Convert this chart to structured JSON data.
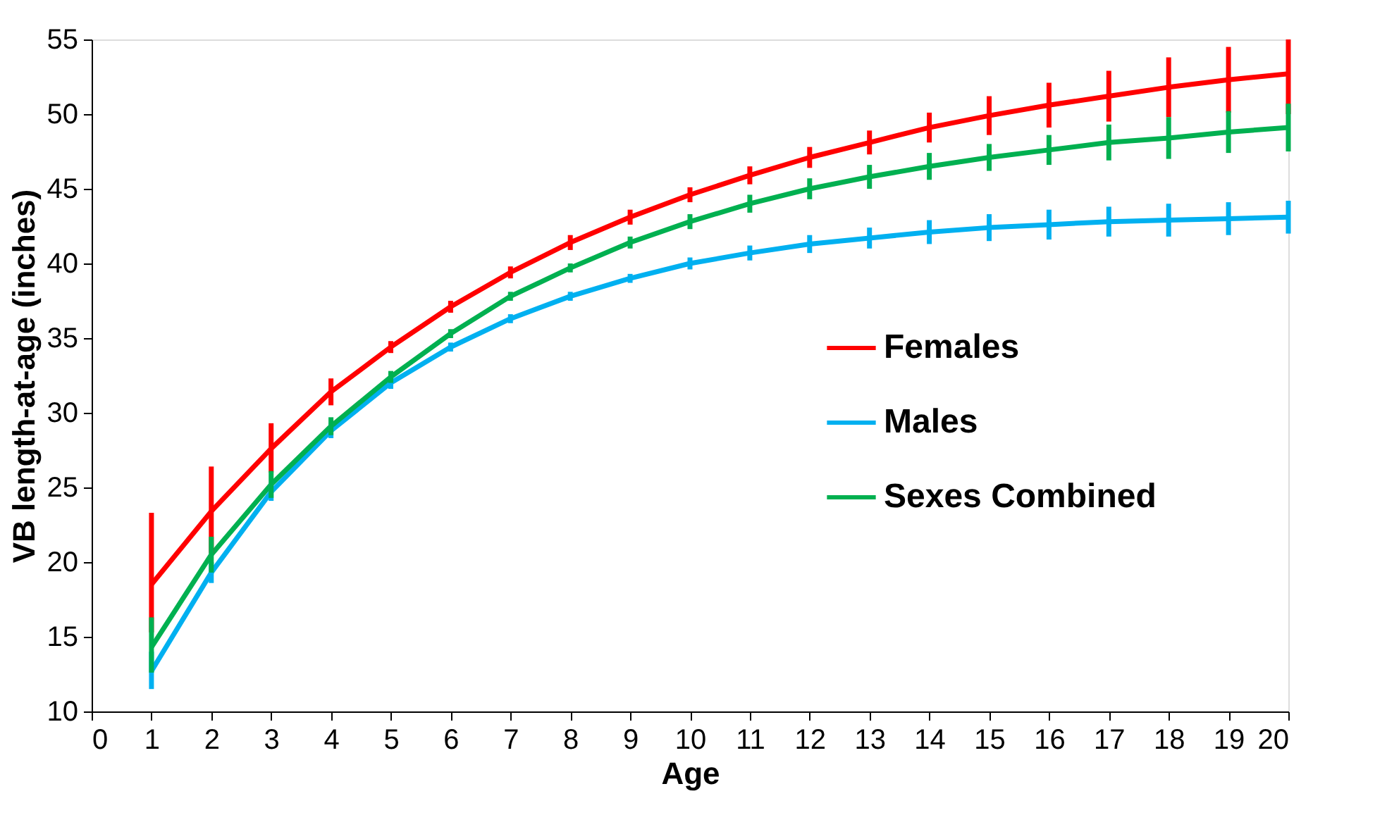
{
  "chart_data": {
    "type": "line",
    "xlabel": "Age",
    "ylabel": "VB length-at-age (inches)",
    "x": [
      1,
      2,
      3,
      4,
      5,
      6,
      7,
      8,
      9,
      10,
      11,
      12,
      13,
      14,
      15,
      16,
      17,
      18,
      19,
      20
    ],
    "xlim": [
      0,
      20
    ],
    "xticks": [
      0,
      1,
      2,
      3,
      4,
      5,
      6,
      7,
      8,
      9,
      10,
      11,
      12,
      13,
      14,
      15,
      16,
      17,
      18,
      19,
      20
    ],
    "ylim": [
      10,
      55
    ],
    "yticks": [
      10,
      15,
      20,
      25,
      30,
      35,
      40,
      45,
      50,
      55
    ],
    "grid": false,
    "legend": "right",
    "marker": "none",
    "line_style": "solid",
    "series": [
      {
        "name": "Females",
        "color": "#ff0000",
        "values": [
          18.5,
          23.4,
          27.6,
          31.4,
          34.4,
          37.1,
          39.4,
          41.4,
          43.1,
          44.6,
          45.9,
          47.1,
          48.1,
          49.1,
          49.9,
          50.6,
          51.2,
          51.8,
          52.3,
          52.7
        ],
        "errors": [
          [
            15.3,
            23.3
          ],
          [
            20.6,
            26.4
          ],
          [
            26,
            29.3
          ],
          [
            30.5,
            32.3
          ],
          0.4,
          0.4,
          0.4,
          0.5,
          0.5,
          0.5,
          0.6,
          0.7,
          0.8,
          1.0,
          1.3,
          1.5,
          1.7,
          2.0,
          2.2,
          [
            50,
            55
          ]
        ]
      },
      {
        "name": "Males",
        "color": "#00b0f0",
        "values": [
          12.7,
          19.3,
          24.7,
          28.8,
          32,
          34.4,
          36.3,
          37.8,
          39,
          40,
          40.7,
          41.3,
          41.7,
          42.1,
          42.4,
          42.6,
          42.8,
          42.9,
          43.0,
          43.1
        ],
        "errors": [
          [
            11.5,
            14
          ],
          0.7,
          0.6,
          0.5,
          0.4,
          0.3,
          0.3,
          0.3,
          0.3,
          0.4,
          0.5,
          0.6,
          0.7,
          0.8,
          0.9,
          1.0,
          1.0,
          1.1,
          1.1,
          1.1
        ]
      },
      {
        "name": "Sexes Combined",
        "color": "#00b050",
        "values": [
          14.3,
          20.5,
          25.2,
          29.1,
          32.4,
          35.3,
          37.8,
          39.7,
          41.4,
          42.8,
          44,
          45,
          45.8,
          46.5,
          47.1,
          47.6,
          48.1,
          48.4,
          48.8,
          49.1
        ],
        "errors": [
          [
            12.6,
            16.3
          ],
          1.2,
          0.9,
          0.6,
          0.4,
          0.3,
          0.3,
          0.3,
          0.4,
          0.5,
          0.6,
          0.7,
          0.8,
          0.9,
          0.9,
          1.0,
          1.2,
          1.4,
          1.4,
          1.6
        ]
      }
    ]
  }
}
